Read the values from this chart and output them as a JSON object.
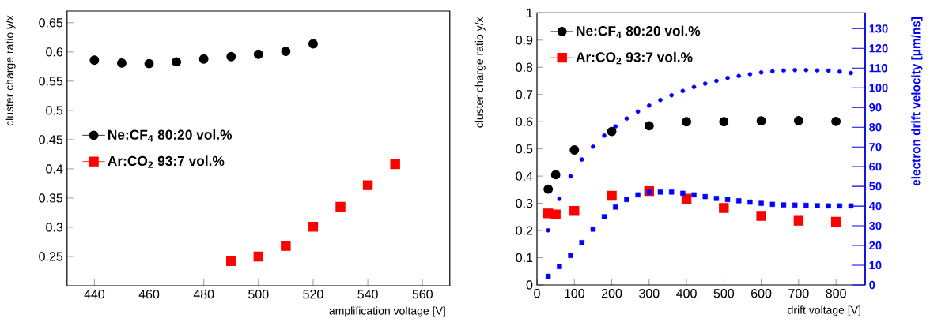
{
  "chart_data": [
    {
      "type": "scatter",
      "xlabel": "amplification voltage [V]",
      "ylabel": "cluster charge ratio y/x",
      "xlim": [
        430,
        570
      ],
      "ylim": [
        0.2,
        0.67
      ],
      "xticks": [
        440,
        460,
        480,
        500,
        520,
        540,
        560
      ],
      "yticks": [
        0.25,
        0.3,
        0.35,
        0.4,
        0.45,
        0.5,
        0.55,
        0.6,
        0.65
      ],
      "legend": "left",
      "series": [
        {
          "name": "Ne:CF$_{4}$ 80:20 vol.%",
          "color": "#000000",
          "marker": "circle",
          "x": [
            440,
            450,
            460,
            470,
            480,
            490,
            500,
            510,
            520
          ],
          "values": [
            0.586,
            0.581,
            0.58,
            0.583,
            0.588,
            0.592,
            0.596,
            0.601,
            0.614
          ]
        },
        {
          "name": "Ar:CO$_{2}$ 93:7 vol.%",
          "color": "#ff0000",
          "marker": "square",
          "x": [
            490,
            500,
            510,
            520,
            530,
            540,
            550
          ],
          "values": [
            0.242,
            0.25,
            0.268,
            0.301,
            0.335,
            0.372,
            0.408
          ]
        }
      ]
    },
    {
      "type": "scatter",
      "xlabel": "drift voltage [V]",
      "ylabel": "cluster charge ratio y/x",
      "y2label": "electron drift velocity [μm/ns]",
      "xlim": [
        0,
        878
      ],
      "ylim": [
        0,
        1
      ],
      "y2lim": [
        0,
        138
      ],
      "xticks": [
        0,
        100,
        200,
        300,
        400,
        500,
        600,
        700,
        800
      ],
      "yticks": [
        0,
        0.1,
        0.2,
        0.3,
        0.4,
        0.5,
        0.6,
        0.7,
        0.8,
        0.9,
        1
      ],
      "y2ticks": [
        0,
        10,
        20,
        30,
        40,
        50,
        60,
        70,
        80,
        90,
        100,
        110,
        120,
        130
      ],
      "legend": "top left",
      "series": [
        {
          "name": "Ne:CF$_{4}$ 80:20 vol.%",
          "color": "#000000",
          "marker": "circle",
          "x": [
            30,
            50,
            100,
            200,
            300,
            400,
            500,
            600,
            700,
            800
          ],
          "values": [
            0.352,
            0.405,
            0.496,
            0.564,
            0.585,
            0.6,
            0.6,
            0.603,
            0.604,
            0.601
          ]
        },
        {
          "name": "Ar:CO$_{2}$ 93:7 vol.%",
          "color": "#ff0000",
          "marker": "square",
          "x": [
            30,
            50,
            100,
            200,
            300,
            400,
            500,
            600,
            700,
            800
          ],
          "values": [
            0.263,
            0.259,
            0.272,
            0.328,
            0.345,
            0.317,
            0.283,
            0.254,
            0.236,
            0.232
          ]
        },
        {
          "color": "#0000ff",
          "marker": "circle",
          "axis": "y2",
          "x": [
            30,
            60,
            90,
            120,
            150,
            180,
            210,
            240,
            270,
            300,
            330,
            360,
            390,
            420,
            450,
            480,
            510,
            540,
            570,
            600,
            630,
            660,
            690,
            720,
            750,
            780,
            810,
            840
          ],
          "values": [
            27.7,
            43.7,
            55.1,
            63.6,
            70.2,
            75.8,
            80.4,
            84.4,
            87.9,
            91.0,
            93.8,
            96.2,
            98.4,
            100.4,
            102.1,
            103.5,
            105.0,
            106.0,
            106.9,
            107.8,
            108.4,
            108.8,
            109.0,
            109.0,
            108.8,
            108.7,
            108.2,
            107.5
          ]
        },
        {
          "color": "#0000ff",
          "marker": "square",
          "axis": "y2",
          "x": [
            30,
            60,
            90,
            120,
            150,
            180,
            210,
            240,
            270,
            300,
            330,
            360,
            390,
            420,
            450,
            480,
            510,
            540,
            570,
            600,
            630,
            660,
            690,
            720,
            750,
            780,
            810,
            840
          ],
          "values": [
            4.4,
            9.3,
            14.9,
            21.5,
            28.3,
            34.6,
            39.5,
            43.3,
            45.7,
            47.0,
            47.1,
            47.1,
            46.5,
            45.7,
            44.8,
            43.9,
            43.3,
            42.7,
            42.0,
            41.4,
            40.9,
            40.6,
            40.5,
            40.4,
            40.2,
            40.1,
            40.1,
            40.1
          ]
        }
      ]
    }
  ]
}
